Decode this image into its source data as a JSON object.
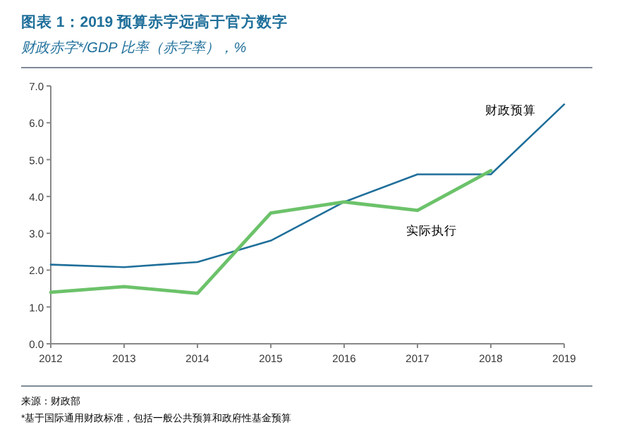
{
  "chart_data": {
    "type": "line",
    "title": "图表 1：2019 预算赤字远高于官方数字",
    "subtitle": "财政赤字*/GDP 比率（赤字率），%",
    "categories": [
      "2012",
      "2013",
      "2014",
      "2015",
      "2016",
      "2017",
      "2018",
      "2019"
    ],
    "series": [
      {
        "name": "财政预算",
        "color": "#1f6f9a",
        "values": [
          2.15,
          2.08,
          2.22,
          2.8,
          3.85,
          4.6,
          4.6,
          6.5
        ]
      },
      {
        "name": "实际执行",
        "color": "#6cc26a",
        "values": [
          1.4,
          1.55,
          1.37,
          3.55,
          3.85,
          3.62,
          4.7,
          null
        ]
      }
    ],
    "ylim": [
      0,
      7
    ],
    "yticks": [
      {
        "value": 0,
        "label": "0.0"
      },
      {
        "value": 1,
        "label": "1.0"
      },
      {
        "value": 2,
        "label": "2.0"
      },
      {
        "value": 3,
        "label": "3.0"
      },
      {
        "value": 4,
        "label": "4.0"
      },
      {
        "value": 5,
        "label": "5.0"
      },
      {
        "value": 6,
        "label": "6.0"
      },
      {
        "value": 7,
        "label": "7.0"
      }
    ],
    "grid": false,
    "marker": "none",
    "line_style": "solid",
    "annotations": [
      "来源：财政部",
      "*基于国际通用财政标准，包括一般公共预算和政府性基金预算"
    ]
  }
}
